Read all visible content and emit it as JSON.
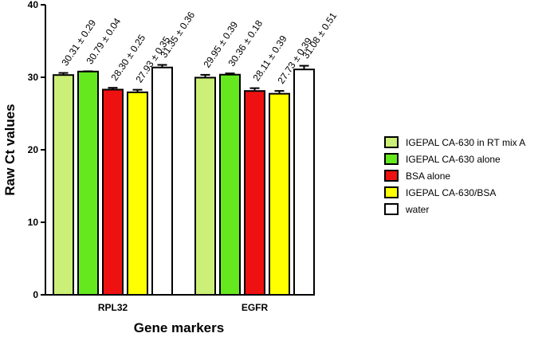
{
  "chart_data": {
    "type": "bar",
    "xlabel": "Gene markers",
    "ylabel": "Raw Ct values",
    "ylim": [
      0,
      40
    ],
    "yticks": [
      0,
      10,
      20,
      30,
      40
    ],
    "grid": false,
    "legend_position": "right",
    "categories": [
      "RPL32",
      "EGFR"
    ],
    "series": [
      {
        "name": "IGEPAL CA-630 in RT mix A",
        "color": "#ccf077",
        "values": [
          30.31,
          29.95
        ],
        "errors": [
          0.29,
          0.39
        ],
        "labels": [
          "30.31 ± 0.29",
          "29.95 ± 0.39"
        ]
      },
      {
        "name": "IGEPAL CA-630 alone",
        "color": "#66e81f",
        "values": [
          30.79,
          30.36
        ],
        "errors": [
          0.04,
          0.18
        ],
        "labels": [
          "30.79 ± 0.04",
          "30.36 ± 0.18"
        ]
      },
      {
        "name": "BSA alone",
        "color": "#ee1111",
        "values": [
          28.3,
          28.11
        ],
        "errors": [
          0.25,
          0.39
        ],
        "labels": [
          "28.30 ± 0.25",
          "28.11 ± 0.39"
        ]
      },
      {
        "name": "IGEPAL CA-630/BSA",
        "color": "#ffff00",
        "values": [
          27.93,
          27.73
        ],
        "errors": [
          0.35,
          0.39
        ],
        "labels": [
          "27.93 ± 0.35",
          "27.73 ± 0.39"
        ]
      },
      {
        "name": "water",
        "color": "#ffffff",
        "values": [
          31.35,
          31.08
        ],
        "errors": [
          0.36,
          0.51
        ],
        "labels": [
          "31.35 ± 0.36",
          "31.08 ± 0.51"
        ]
      }
    ]
  }
}
